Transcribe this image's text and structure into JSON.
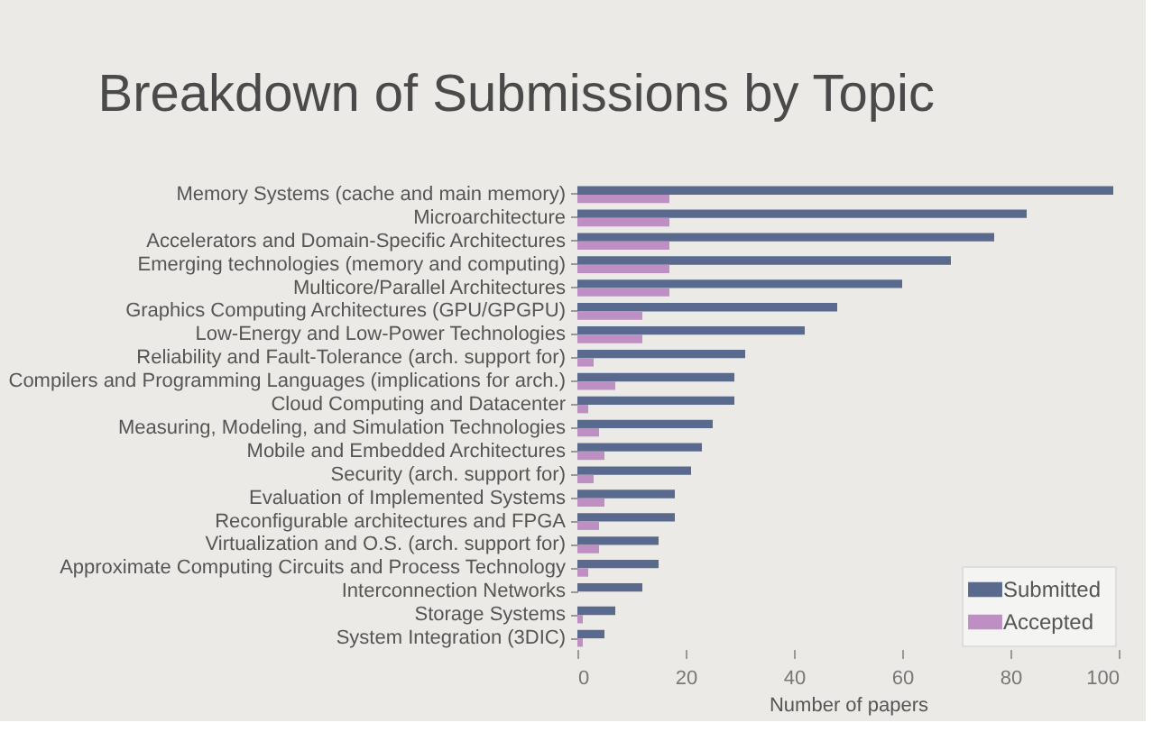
{
  "chart_data": {
    "type": "bar",
    "orientation": "horizontal",
    "title": "Breakdown of Submissions by Topic",
    "xlabel": "Number of papers",
    "categories": [
      "Memory Systems (cache and main memory)",
      "Microarchitecture",
      "Accelerators and Domain-Specific Architectures",
      "Emerging technologies (memory and computing)",
      "Multicore/Parallel Architectures",
      "Graphics Computing Architectures (GPU/GPGPU)",
      "Low-Energy and Low-Power Technologies",
      "Reliability and Fault-Tolerance (arch. support for)",
      "Compilers and Programming Languages (implications for arch.)",
      "Cloud Computing and Datacenter",
      "Measuring, Modeling, and Simulation Technologies",
      "Mobile and Embedded Architectures",
      "Security (arch. support for)",
      "Evaluation of Implemented Systems",
      "Reconfigurable architectures and FPGA",
      "Virtualization and O.S. (arch. support for)",
      "Approximate Computing Circuits and Process Technology",
      "Interconnection Networks",
      "Storage Systems",
      "System Integration (3DIC)"
    ],
    "series": [
      {
        "name": "Submitted",
        "color": "#596a8e",
        "values": [
          99,
          83,
          77,
          69,
          60,
          48,
          42,
          31,
          29,
          29,
          25,
          23,
          21,
          18,
          18,
          15,
          15,
          12,
          7,
          5
        ]
      },
      {
        "name": "Accepted",
        "color": "#bd8fc2",
        "values": [
          17,
          17,
          17,
          17,
          17,
          12,
          12,
          3,
          7,
          2,
          4,
          5,
          3,
          5,
          4,
          4,
          2,
          0,
          1,
          1
        ]
      }
    ],
    "xlim": [
      0,
      100
    ],
    "xticks": [
      0,
      20,
      40,
      60,
      80,
      100
    ],
    "grid": false,
    "legend": "bottom right"
  }
}
